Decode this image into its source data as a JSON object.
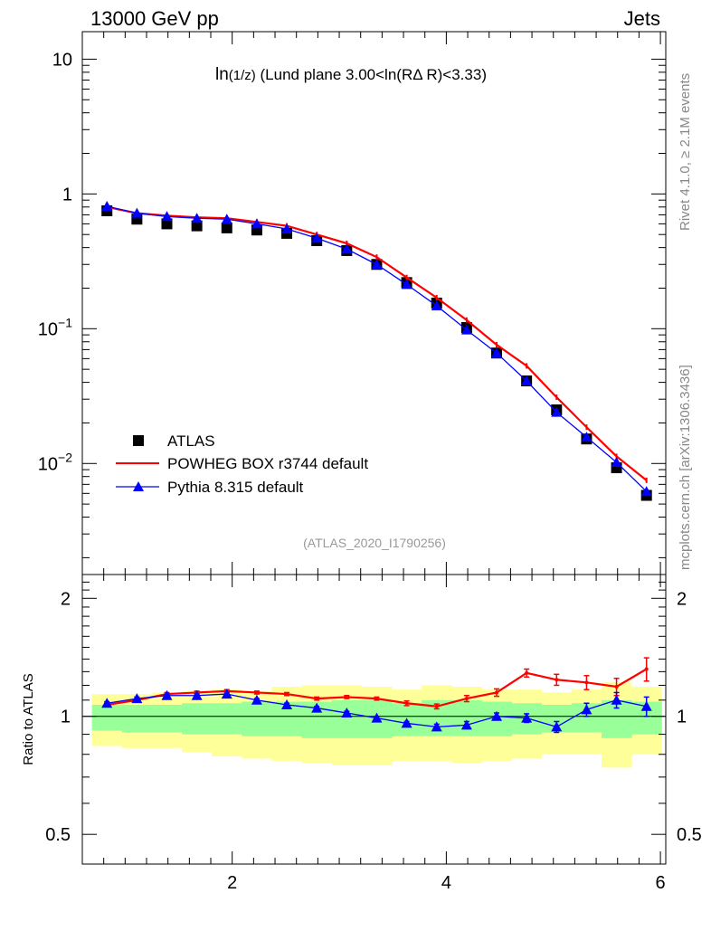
{
  "header": {
    "left": "13000 GeV pp",
    "right": "Jets"
  },
  "side_labels": {
    "rivet": "Rivet 4.1.0, ≥ 2.1M events",
    "mcplots": "mcplots.cern.ch [arXiv:1306.3436]"
  },
  "title_main": "ln",
  "title_sub": "(1/z)",
  "title_rest": " (Lund plane 3.00<ln(RΔ R)<3.33)",
  "analysis_id": "(ATLAS_2020_I1790256)",
  "colors": {
    "data": "#000000",
    "powheg": "#ff0000",
    "pythia": "#0000ff",
    "band_outer": "#ffff99",
    "band_inner": "#99ff99"
  },
  "legend": [
    {
      "key": "data",
      "label": "ATLAS"
    },
    {
      "key": "powheg",
      "label": "POWHEG BOX r3744 default"
    },
    {
      "key": "pythia",
      "label": "Pythia 8.315 default"
    }
  ],
  "chart_data": {
    "type": "scatter",
    "x_edges": [
      0.69,
      0.97,
      1.25,
      1.53,
      1.81,
      2.09,
      2.37,
      2.65,
      2.93,
      3.21,
      3.49,
      3.77,
      4.05,
      4.33,
      4.61,
      4.89,
      5.17,
      5.45,
      5.73
    ],
    "x": [
      0.83,
      1.11,
      1.39,
      1.67,
      1.95,
      2.23,
      2.51,
      2.79,
      3.07,
      3.35,
      3.63,
      3.91,
      4.19,
      4.47,
      4.75,
      5.03,
      5.31,
      5.59,
      5.87
    ],
    "xlim": [
      0.6,
      6.05
    ],
    "x_ticks": [
      2,
      4,
      6
    ],
    "main": {
      "ylim": [
        0.0015,
        16
      ],
      "y_scale": "log",
      "y_tick_labels": [
        "10",
        "1",
        "10⁻¹",
        "10⁻²"
      ],
      "series": [
        {
          "key": "data",
          "name": "ATLAS",
          "marker": "square",
          "values": [
            0.75,
            0.65,
            0.6,
            0.58,
            0.56,
            0.54,
            0.51,
            0.45,
            0.38,
            0.3,
            0.22,
            0.155,
            0.102,
            0.066,
            0.041,
            0.025,
            0.0152,
            0.0093,
            0.0058
          ]
        },
        {
          "key": "powheg",
          "name": "POWHEG BOX r3744 default",
          "marker": "line",
          "values": [
            0.8,
            0.72,
            0.69,
            0.67,
            0.66,
            0.62,
            0.58,
            0.5,
            0.43,
            0.34,
            0.24,
            0.17,
            0.116,
            0.076,
            0.053,
            0.031,
            0.0186,
            0.0113,
            0.0075
          ]
        },
        {
          "key": "pythia",
          "name": "Pythia 8.315 default",
          "marker": "triangle",
          "values": [
            0.81,
            0.72,
            0.68,
            0.66,
            0.65,
            0.6,
            0.55,
            0.47,
            0.39,
            0.3,
            0.213,
            0.148,
            0.098,
            0.066,
            0.041,
            0.024,
            0.0157,
            0.0102,
            0.0062
          ]
        }
      ]
    },
    "ratio": {
      "ylabel": "Ratio to ATLAS",
      "ylim": [
        0.42,
        2.3
      ],
      "y_tick_labels": [
        "2",
        "1",
        "0.5"
      ],
      "reference": 1,
      "band_outer": [
        [
          0.84,
          1.14
        ],
        [
          0.83,
          1.14
        ],
        [
          0.83,
          1.15
        ],
        [
          0.81,
          1.16
        ],
        [
          0.79,
          1.17
        ],
        [
          0.78,
          1.16
        ],
        [
          0.77,
          1.19
        ],
        [
          0.76,
          1.2
        ],
        [
          0.75,
          1.2
        ],
        [
          0.75,
          1.19
        ],
        [
          0.77,
          1.17
        ],
        [
          0.77,
          1.2
        ],
        [
          0.76,
          1.19
        ],
        [
          0.77,
          1.17
        ],
        [
          0.78,
          1.17
        ],
        [
          0.8,
          1.15
        ],
        [
          0.8,
          1.17
        ],
        [
          0.74,
          1.22
        ],
        [
          0.8,
          1.19
        ]
      ],
      "band_inner": [
        [
          0.92,
          1.07
        ],
        [
          0.91,
          1.07
        ],
        [
          0.91,
          1.07
        ],
        [
          0.9,
          1.08
        ],
        [
          0.9,
          1.08
        ],
        [
          0.89,
          1.09
        ],
        [
          0.89,
          1.09
        ],
        [
          0.88,
          1.09
        ],
        [
          0.88,
          1.1
        ],
        [
          0.88,
          1.1
        ],
        [
          0.89,
          1.08
        ],
        [
          0.89,
          1.1
        ],
        [
          0.89,
          1.1
        ],
        [
          0.89,
          1.09
        ],
        [
          0.9,
          1.08
        ],
        [
          0.91,
          1.07
        ],
        [
          0.91,
          1.08
        ],
        [
          0.88,
          1.1
        ],
        [
          0.9,
          1.09
        ]
      ],
      "series": [
        {
          "key": "powheg",
          "values": [
            1.07,
            1.1,
            1.14,
            1.15,
            1.16,
            1.15,
            1.14,
            1.11,
            1.12,
            1.11,
            1.08,
            1.06,
            1.11,
            1.15,
            1.29,
            1.24,
            1.22,
            1.19,
            1.32
          ],
          "errors": [
            0.01,
            0.01,
            0.01,
            0.01,
            0.01,
            0.01,
            0.01,
            0.01,
            0.01,
            0.01,
            0.015,
            0.015,
            0.02,
            0.025,
            0.03,
            0.04,
            0.05,
            0.06,
            0.09
          ]
        },
        {
          "key": "pythia",
          "values": [
            1.08,
            1.11,
            1.13,
            1.13,
            1.14,
            1.1,
            1.07,
            1.05,
            1.02,
            0.99,
            0.96,
            0.94,
            0.95,
            1.0,
            0.99,
            0.94,
            1.04,
            1.1,
            1.06
          ],
          "errors": [
            0.01,
            0.01,
            0.01,
            0.01,
            0.01,
            0.01,
            0.01,
            0.01,
            0.01,
            0.01,
            0.01,
            0.015,
            0.02,
            0.02,
            0.025,
            0.03,
            0.04,
            0.05,
            0.06
          ]
        }
      ]
    }
  }
}
